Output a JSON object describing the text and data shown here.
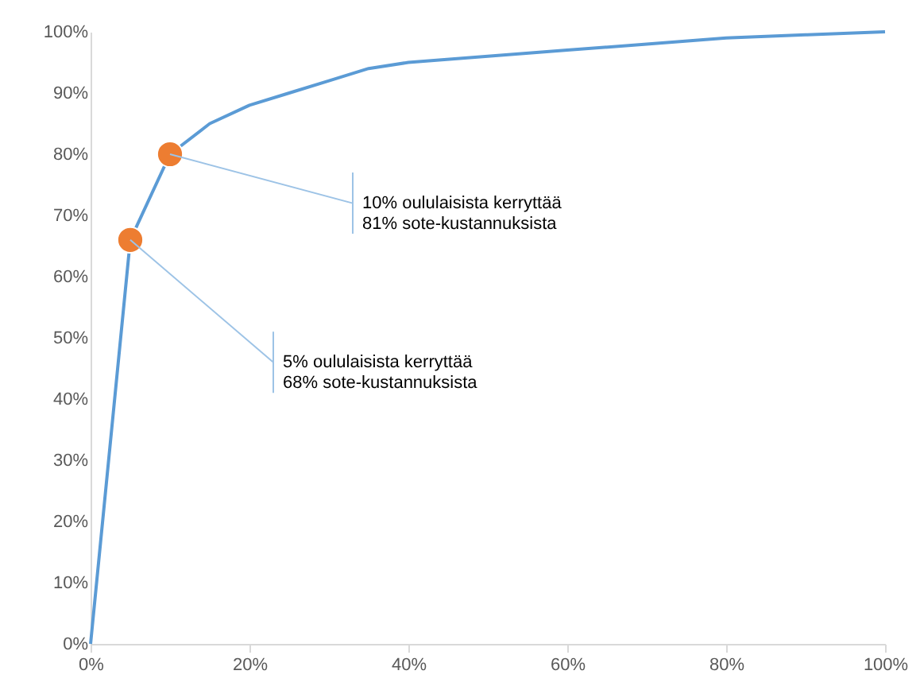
{
  "chart_data": {
    "type": "line",
    "xlim": [
      0,
      100
    ],
    "ylim": [
      0,
      100
    ],
    "xticks": [
      {
        "value": 0,
        "label": "0%"
      },
      {
        "value": 20,
        "label": "20%"
      },
      {
        "value": 40,
        "label": "40%"
      },
      {
        "value": 60,
        "label": "60%"
      },
      {
        "value": 80,
        "label": "80%"
      },
      {
        "value": 100,
        "label": "100%"
      }
    ],
    "yticks": [
      {
        "value": 0,
        "label": "0%"
      },
      {
        "value": 10,
        "label": "10%"
      },
      {
        "value": 20,
        "label": "20%"
      },
      {
        "value": 30,
        "label": "30%"
      },
      {
        "value": 40,
        "label": "40%"
      },
      {
        "value": 50,
        "label": "50%"
      },
      {
        "value": 60,
        "label": "60%"
      },
      {
        "value": 70,
        "label": "70%"
      },
      {
        "value": 80,
        "label": "80%"
      },
      {
        "value": 90,
        "label": "90%"
      },
      {
        "value": 100,
        "label": "100%"
      }
    ],
    "marker": "none",
    "line_style": "solid",
    "series": [
      {
        "color": "#5b9bd5",
        "x": [
          0,
          5,
          10,
          15,
          20,
          25,
          30,
          35,
          40,
          50,
          60,
          70,
          80,
          90,
          100
        ],
        "values": [
          0,
          66,
          80,
          85,
          88,
          90,
          92,
          94,
          95,
          96,
          97,
          98,
          99,
          99.5,
          100
        ]
      },
      {
        "type": "scatter",
        "color": "#ed7d31",
        "marker": "circle",
        "x": [
          5,
          10
        ],
        "values": [
          66,
          80
        ]
      }
    ],
    "annotations": [
      {
        "text": "10% oululaisista kerryttää\n81% sote-kustannuksista",
        "x": 10,
        "y": 80
      },
      {
        "text": "5% oululaisista kerryttää\n68% sote-kustannuksista",
        "x": 5,
        "y": 66
      }
    ]
  }
}
